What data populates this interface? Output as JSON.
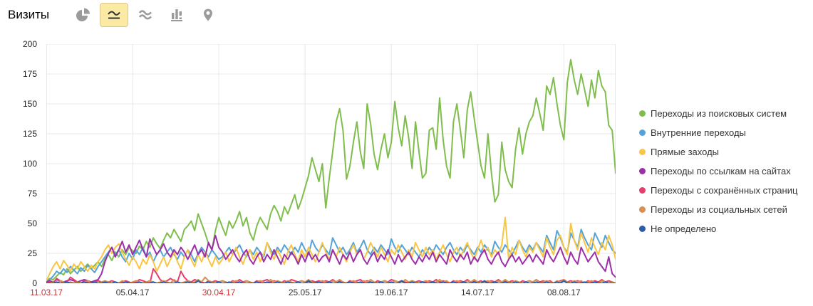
{
  "header": {
    "title": "Визиты",
    "tools": [
      {
        "id": "pie",
        "name": "pie-chart-view",
        "selected": false
      },
      {
        "id": "line",
        "name": "line-chart-view",
        "selected": true
      },
      {
        "id": "stacked",
        "name": "stacked-area-view",
        "selected": false
      },
      {
        "id": "columns",
        "name": "column-chart-view",
        "selected": false
      },
      {
        "id": "map",
        "name": "map-view",
        "selected": false
      }
    ]
  },
  "chart_data": {
    "type": "line",
    "title": "Визиты",
    "xlabel": "",
    "ylabel": "",
    "ylim": [
      0,
      200
    ],
    "y_ticks": [
      0,
      25,
      50,
      75,
      100,
      125,
      150,
      175,
      200
    ],
    "grid": true,
    "legend_position": "right",
    "x_start_date": "11.03.17",
    "x_ticks": [
      {
        "index": 0,
        "label": "11.03.17",
        "holiday": true
      },
      {
        "index": 25,
        "label": "05.04.17",
        "holiday": false
      },
      {
        "index": 50,
        "label": "30.04.17",
        "holiday": true
      },
      {
        "index": 75,
        "label": "25.05.17",
        "holiday": false
      },
      {
        "index": 100,
        "label": "19.06.17",
        "holiday": false
      },
      {
        "index": 125,
        "label": "14.07.17",
        "holiday": false
      },
      {
        "index": 150,
        "label": "08.08.17",
        "holiday": false
      }
    ],
    "series": [
      {
        "id": "search",
        "name": "Переходы из поисковых систем",
        "color": "#7fbe4c",
        "values": [
          2,
          4,
          3,
          6,
          9,
          7,
          12,
          8,
          11,
          14,
          10,
          13,
          16,
          12,
          15,
          18,
          14,
          20,
          24,
          19,
          26,
          22,
          28,
          24,
          30,
          27,
          25,
          31,
          28,
          35,
          30,
          38,
          33,
          29,
          36,
          42,
          38,
          45,
          40,
          35,
          45,
          48,
          52,
          44,
          58,
          50,
          42,
          33,
          28,
          44,
          55,
          47,
          40,
          52,
          46,
          52,
          60,
          48,
          55,
          42,
          36,
          48,
          55,
          50,
          45,
          58,
          65,
          60,
          52,
          64,
          58,
          66,
          74,
          62,
          70,
          80,
          90,
          105,
          95,
          85,
          100,
          63,
          88,
          110,
          135,
          146,
          128,
          87,
          98,
          118,
          135,
          110,
          96,
          150,
          133,
          108,
          95,
          112,
          125,
          105,
          118,
          152,
          130,
          115,
          140,
          122,
          96,
          135,
          110,
          88,
          92,
          128,
          130,
          112,
          155,
          120,
          98,
          88,
          135,
          150,
          128,
          105,
          145,
          160,
          138,
          118,
          98,
          88,
          125,
          92,
          68,
          74,
          118,
          95,
          85,
          80,
          112,
          130,
          108,
          125,
          135,
          140,
          155,
          142,
          128,
          165,
          158,
          172,
          150,
          132,
          120,
          168,
          187,
          170,
          158,
          175,
          162,
          148,
          170,
          155,
          178,
          165,
          160,
          132,
          128,
          92
        ]
      },
      {
        "id": "internal",
        "name": "Внутренние переходы",
        "color": "#54a2da",
        "values": [
          1,
          3,
          6,
          10,
          8,
          12,
          9,
          14,
          11,
          8,
          13,
          10,
          15,
          12,
          9,
          14,
          18,
          22,
          26,
          30,
          24,
          28,
          22,
          18,
          25,
          20,
          28,
          24,
          30,
          22,
          26,
          18,
          24,
          28,
          22,
          26,
          30,
          24,
          20,
          26,
          22,
          28,
          24,
          18,
          25,
          30,
          26,
          22,
          28,
          24,
          20,
          22,
          26,
          30,
          24,
          28,
          32,
          26,
          22,
          28,
          24,
          30,
          26,
          22,
          34,
          28,
          24,
          30,
          26,
          32,
          28,
          24,
          30,
          26,
          34,
          28,
          24,
          36,
          30,
          26,
          32,
          28,
          24,
          38,
          32,
          26,
          30,
          24,
          28,
          34,
          26,
          30,
          36,
          28,
          24,
          30,
          26,
          32,
          28,
          24,
          37,
          30,
          26,
          32,
          28,
          24,
          30,
          26,
          22,
          28,
          24,
          30,
          26,
          32,
          28,
          24,
          30,
          34,
          28,
          24,
          30,
          26,
          32,
          28,
          24,
          30,
          26,
          32,
          28,
          24,
          35,
          30,
          26,
          32,
          28,
          24,
          30,
          36,
          30,
          26,
          32,
          28,
          34,
          30,
          26,
          40,
          34,
          28,
          44,
          38,
          30,
          26,
          42,
          36,
          30,
          45,
          38,
          32,
          28,
          42,
          36,
          30,
          40,
          34,
          28,
          25
        ]
      },
      {
        "id": "direct",
        "name": "Прямые заходы",
        "color": "#f8c643",
        "values": [
          2,
          8,
          14,
          18,
          12,
          19,
          15,
          10,
          16,
          12,
          18,
          14,
          10,
          15,
          12,
          18,
          22,
          28,
          32,
          25,
          30,
          33,
          26,
          20,
          15,
          22,
          18,
          12,
          20,
          16,
          24,
          18,
          10,
          16,
          22,
          14,
          20,
          26,
          18,
          12,
          22,
          28,
          20,
          14,
          24,
          18,
          26,
          20,
          14,
          22,
          16,
          20,
          26,
          18,
          24,
          30,
          22,
          16,
          24,
          28,
          20,
          26,
          18,
          24,
          34,
          26,
          20,
          28,
          22,
          16,
          26,
          32,
          24,
          18,
          28,
          22,
          30,
          24,
          18,
          26,
          34,
          26,
          20,
          28,
          22,
          30,
          24,
          18,
          26,
          32,
          24,
          28,
          20,
          26,
          34,
          28,
          22,
          30,
          24,
          18,
          28,
          24,
          32,
          26,
          20,
          28,
          22,
          34,
          28,
          22,
          30,
          24,
          28,
          20,
          26,
          32,
          24,
          18,
          26,
          30,
          22,
          28,
          34,
          26,
          20,
          28,
          36,
          26,
          30,
          22,
          28,
          24,
          32,
          55,
          20,
          30,
          24,
          36,
          28,
          22,
          30,
          26,
          34,
          28,
          22,
          38,
          30,
          24,
          36,
          40,
          30,
          24,
          50,
          36,
          28,
          42,
          34,
          26,
          38,
          30,
          24,
          34,
          28,
          40,
          32,
          20
        ]
      },
      {
        "id": "sitelinks",
        "name": "Переходы по ссылкам на сайтах",
        "color": "#9c2fa8",
        "values": [
          1,
          2,
          1,
          3,
          2,
          1,
          2,
          3,
          2,
          1,
          2,
          3,
          2,
          1,
          2,
          3,
          8,
          18,
          25,
          30,
          22,
          28,
          35,
          26,
          32,
          24,
          30,
          36,
          28,
          22,
          37,
          30,
          24,
          28,
          33,
          26,
          22,
          28,
          24,
          30,
          26,
          20,
          26,
          32,
          24,
          28,
          22,
          34,
          28,
          40,
          30,
          26,
          20,
          24,
          28,
          22,
          18,
          24,
          28,
          20,
          16,
          22,
          26,
          18,
          24,
          20,
          28,
          22,
          16,
          24,
          20,
          26,
          22,
          16,
          24,
          18,
          26,
          20,
          24,
          18,
          22,
          24,
          18,
          28,
          22,
          16,
          24,
          20,
          26,
          18,
          24,
          28,
          20,
          16,
          22,
          26,
          18,
          24,
          20,
          28,
          22,
          16,
          24,
          18,
          22,
          26,
          20,
          16,
          22,
          18,
          24,
          20,
          26,
          18,
          24,
          20,
          16,
          28,
          22,
          18,
          24,
          20,
          26,
          16,
          22,
          18,
          24,
          28,
          20,
          16,
          22,
          26,
          18,
          14,
          20,
          24,
          18,
          22,
          16,
          20,
          24,
          18,
          24,
          20,
          16,
          28,
          22,
          18,
          24,
          30,
          22,
          16,
          26,
          20,
          16,
          30,
          24,
          18,
          22,
          26,
          18,
          14,
          10,
          22,
          8,
          5
        ]
      },
      {
        "id": "saved",
        "name": "Переходы с сохранённых страниц",
        "color": "#e63d6c",
        "values": [
          0,
          1,
          0,
          4,
          2,
          0,
          1,
          5,
          3,
          1,
          0,
          2,
          1,
          0,
          1,
          2,
          1,
          0,
          1,
          2,
          1,
          0,
          1,
          2,
          1,
          0,
          1,
          3,
          2,
          1,
          0,
          12,
          8,
          3,
          1,
          2,
          4,
          2,
          1,
          10,
          5,
          2,
          1,
          3,
          2,
          1,
          0,
          2,
          1,
          2,
          1,
          2,
          1,
          0,
          2,
          1,
          3,
          1,
          2,
          1,
          0,
          2,
          1,
          2,
          3,
          1,
          2,
          1,
          0,
          2,
          1,
          3,
          2,
          1,
          2,
          1,
          0,
          2,
          1,
          2,
          1,
          2,
          1,
          3,
          1,
          2,
          1,
          0,
          2,
          1,
          2,
          3,
          1,
          2,
          1,
          0,
          2,
          1,
          2,
          1,
          3,
          2,
          1,
          2,
          1,
          0,
          2,
          1,
          2,
          1,
          1,
          2,
          1,
          3,
          1,
          2,
          1,
          0,
          2,
          1,
          2,
          1,
          3,
          1,
          2,
          1,
          2,
          0,
          1,
          2,
          1,
          3,
          1,
          2,
          1,
          2,
          1,
          0,
          2,
          1,
          2,
          1,
          3,
          1,
          2,
          1,
          2,
          0,
          1,
          2,
          3,
          1,
          2,
          1,
          2,
          1,
          0,
          2,
          1,
          2,
          1,
          3,
          1,
          2,
          1,
          0
        ]
      },
      {
        "id": "social",
        "name": "Переходы из социальных сетей",
        "color": "#d5914e",
        "values": [
          0,
          0,
          1,
          0,
          2,
          1,
          0,
          1,
          0,
          1,
          0,
          1,
          2,
          0,
          1,
          0,
          1,
          2,
          1,
          0,
          1,
          0,
          2,
          1,
          0,
          1,
          2,
          1,
          0,
          1,
          2,
          1,
          0,
          1,
          2,
          1,
          0,
          3,
          1,
          0,
          1,
          2,
          0,
          1,
          3,
          1,
          5,
          2,
          1,
          0,
          1,
          2,
          1,
          0,
          1,
          2,
          1,
          0,
          2,
          1,
          0,
          1,
          2,
          1,
          0,
          3,
          1,
          2,
          1,
          0,
          2,
          1,
          0,
          1,
          2,
          1,
          3,
          1,
          0,
          1,
          2,
          1,
          0,
          2,
          1,
          3,
          1,
          0,
          1,
          2,
          1,
          0,
          2,
          1,
          3,
          1,
          0,
          1,
          2,
          1,
          0,
          2,
          1,
          0,
          3,
          1,
          2,
          1,
          0,
          1,
          2,
          1,
          0,
          1,
          3,
          1,
          2,
          0,
          1,
          2,
          1,
          0,
          2,
          1,
          3,
          1,
          0,
          1,
          2,
          1,
          0,
          2,
          1,
          3,
          1,
          0,
          2,
          1,
          0,
          1,
          2,
          1,
          3,
          0,
          1,
          2,
          1,
          0,
          2,
          1,
          3,
          1,
          0,
          2,
          1,
          2,
          0,
          1,
          2,
          1,
          0,
          2,
          1,
          0,
          1,
          0
        ]
      },
      {
        "id": "undefined",
        "name": "Не определено",
        "color": "#2a5caa",
        "values": [
          0,
          0,
          0,
          1,
          0,
          0,
          1,
          0,
          0,
          0,
          0,
          1,
          0,
          0,
          1,
          0,
          0,
          1,
          0,
          0,
          1,
          0,
          0,
          1,
          0,
          0,
          0,
          1,
          0,
          0,
          0,
          1,
          0,
          0,
          1,
          0,
          0,
          0,
          1,
          0,
          0,
          1,
          0,
          0,
          2,
          0,
          0,
          1,
          0,
          0,
          1,
          0,
          0,
          1,
          0,
          0,
          1,
          0,
          0,
          0,
          0,
          1,
          0,
          0,
          1,
          0,
          0,
          1,
          0,
          0,
          1,
          0,
          0,
          1,
          0,
          0,
          2,
          0,
          0,
          1,
          0,
          0,
          1,
          0,
          0,
          1,
          0,
          0,
          1,
          0,
          0,
          1,
          0,
          0,
          1,
          0,
          0,
          1,
          0,
          0,
          1,
          0,
          0,
          2,
          0,
          0,
          1,
          0,
          0,
          1,
          0,
          0,
          1,
          0,
          0,
          1,
          0,
          0,
          1,
          0,
          0,
          1,
          0,
          0,
          1,
          0,
          0,
          2,
          0,
          0,
          1,
          0,
          0,
          1,
          0,
          0,
          1,
          0,
          0,
          1,
          0,
          0,
          1,
          0,
          0,
          1,
          0,
          0,
          1,
          0,
          2,
          0,
          0,
          1,
          0,
          0,
          1,
          0,
          0,
          1,
          0,
          0,
          1,
          0,
          0,
          0
        ]
      }
    ]
  }
}
